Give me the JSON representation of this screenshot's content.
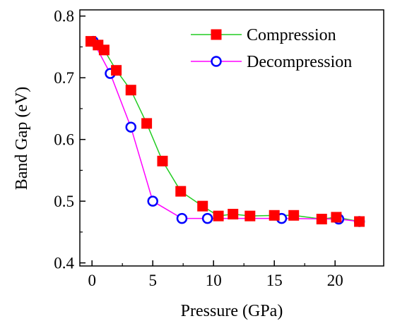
{
  "chart_data": {
    "type": "line",
    "title": "",
    "xlabel": "Pressure (GPa)",
    "ylabel": "Band Gap (eV)",
    "xlim": [
      -1,
      24
    ],
    "ylim": [
      0.395,
      0.81
    ],
    "xticks": [
      0,
      5,
      10,
      15,
      20
    ],
    "yticks": [
      0.4,
      0.5,
      0.6,
      0.7,
      0.8
    ],
    "xtick_labels": [
      "0",
      "5",
      "10",
      "15",
      "20"
    ],
    "ytick_labels": [
      "0.4",
      "0.5",
      "0.6",
      "0.7",
      "0.8"
    ],
    "grid": false,
    "legend_position": "top-right",
    "series": [
      {
        "name": "Compression",
        "marker": "square",
        "line_color": "#22cc22",
        "marker_color": "#ff0000",
        "x": [
          -0.1,
          0.5,
          1.0,
          2.0,
          3.2,
          4.5,
          5.8,
          7.3,
          9.1,
          10.4,
          11.6,
          13.0,
          15.0,
          16.6,
          18.9,
          20.1,
          22.0
        ],
        "y": [
          0.759,
          0.753,
          0.745,
          0.712,
          0.68,
          0.626,
          0.565,
          0.516,
          0.492,
          0.476,
          0.479,
          0.476,
          0.477,
          0.477,
          0.471,
          0.474,
          0.467
        ]
      },
      {
        "name": "Decompression",
        "marker": "circle",
        "line_color": "#ff00ff",
        "marker_color": "#0000ff",
        "x": [
          0.1,
          1.5,
          3.2,
          5.0,
          7.4,
          9.5,
          15.6,
          20.3,
          22.0
        ],
        "y": [
          0.759,
          0.707,
          0.62,
          0.5,
          0.472,
          0.472,
          0.472,
          0.471,
          0.467
        ]
      }
    ]
  }
}
